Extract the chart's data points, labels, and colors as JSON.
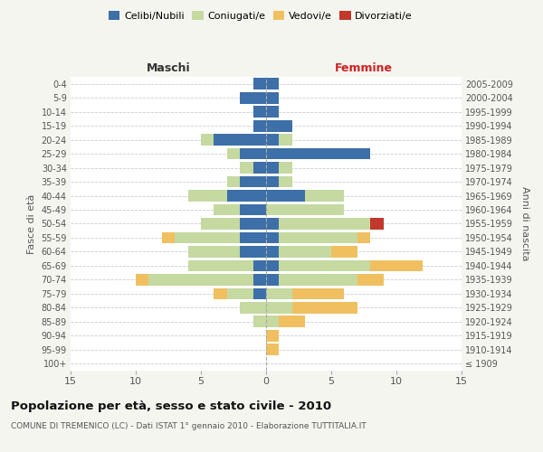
{
  "age_groups": [
    "100+",
    "95-99",
    "90-94",
    "85-89",
    "80-84",
    "75-79",
    "70-74",
    "65-69",
    "60-64",
    "55-59",
    "50-54",
    "45-49",
    "40-44",
    "35-39",
    "30-34",
    "25-29",
    "20-24",
    "15-19",
    "10-14",
    "5-9",
    "0-4"
  ],
  "birth_years": [
    "≤ 1909",
    "1910-1914",
    "1915-1919",
    "1920-1924",
    "1925-1929",
    "1930-1934",
    "1935-1939",
    "1940-1944",
    "1945-1949",
    "1950-1954",
    "1955-1959",
    "1960-1964",
    "1965-1969",
    "1970-1974",
    "1975-1979",
    "1980-1984",
    "1985-1989",
    "1990-1994",
    "1995-1999",
    "2000-2004",
    "2005-2009"
  ],
  "maschi": {
    "celibi": [
      0,
      0,
      0,
      0,
      0,
      1,
      1,
      1,
      2,
      2,
      2,
      2,
      3,
      2,
      1,
      2,
      4,
      1,
      1,
      2,
      1
    ],
    "coniugati": [
      0,
      0,
      0,
      1,
      2,
      2,
      8,
      5,
      4,
      5,
      3,
      2,
      3,
      1,
      1,
      1,
      1,
      0,
      0,
      0,
      0
    ],
    "vedovi": [
      0,
      0,
      0,
      0,
      0,
      1,
      1,
      0,
      0,
      1,
      0,
      0,
      0,
      0,
      0,
      0,
      0,
      0,
      0,
      0,
      0
    ],
    "divorziati": [
      0,
      0,
      0,
      0,
      0,
      0,
      0,
      0,
      0,
      0,
      0,
      0,
      0,
      0,
      0,
      0,
      0,
      0,
      0,
      0,
      0
    ]
  },
  "femmine": {
    "nubili": [
      0,
      0,
      0,
      0,
      0,
      0,
      1,
      1,
      1,
      1,
      1,
      0,
      3,
      1,
      1,
      8,
      1,
      2,
      1,
      1,
      1
    ],
    "coniugate": [
      0,
      0,
      0,
      1,
      2,
      2,
      6,
      7,
      4,
      6,
      7,
      6,
      3,
      1,
      1,
      0,
      1,
      0,
      0,
      0,
      0
    ],
    "vedove": [
      0,
      1,
      1,
      2,
      5,
      4,
      2,
      4,
      2,
      1,
      0,
      0,
      0,
      0,
      0,
      0,
      0,
      0,
      0,
      0,
      0
    ],
    "divorziate": [
      0,
      0,
      0,
      0,
      0,
      0,
      0,
      0,
      0,
      0,
      1,
      0,
      0,
      0,
      0,
      0,
      0,
      0,
      0,
      0,
      0
    ]
  },
  "colors": {
    "celibi": "#3d6fa8",
    "coniugati": "#c5d9a0",
    "vedovi": "#f0c060",
    "divorziati": "#c0392b"
  },
  "xlim": 15,
  "title": "Popolazione per età, sesso e stato civile - 2010",
  "subtitle": "COMUNE DI TREMENICO (LC) - Dati ISTAT 1° gennaio 2010 - Elaborazione TUTTITALIA.IT",
  "ylabel_left": "Fasce di età",
  "ylabel_right": "Anni di nascita",
  "xlabel_maschi": "Maschi",
  "xlabel_femmine": "Femmine",
  "bg_color": "#f5f5f0",
  "plot_bg": "#ffffff",
  "legend_labels": [
    "Celibi/Nubili",
    "Coniugati/e",
    "Vedovi/e",
    "Divorziati/e"
  ]
}
